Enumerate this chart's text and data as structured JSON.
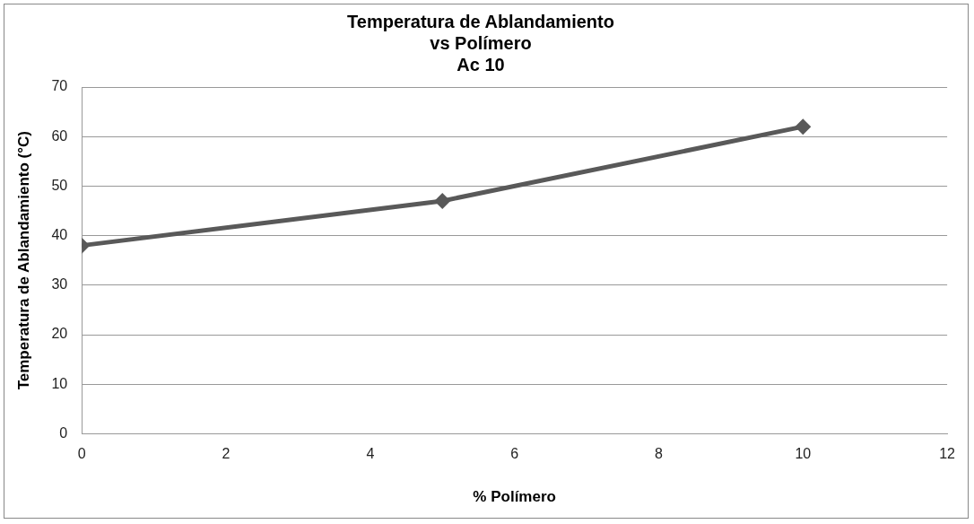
{
  "chart_data": {
    "type": "line",
    "title": [
      "Temperatura de Ablandamiento",
      "vs Polímero",
      "Ac 10"
    ],
    "xlabel": "% Polímero",
    "ylabel": "Temperatura de Ablandamiento (°C)",
    "x": [
      0,
      5,
      10
    ],
    "series": [
      {
        "color": "#595959",
        "values": [
          38,
          47,
          62
        ]
      }
    ],
    "xlim": [
      0,
      12
    ],
    "xticks": [
      0,
      2,
      4,
      6,
      8,
      10,
      12
    ],
    "ylim": [
      0,
      70
    ],
    "yticks": [
      0,
      10,
      20,
      30,
      40,
      50,
      60,
      70
    ],
    "grid": "y",
    "legend": false,
    "marker": "diamond",
    "line_style": "solid"
  }
}
